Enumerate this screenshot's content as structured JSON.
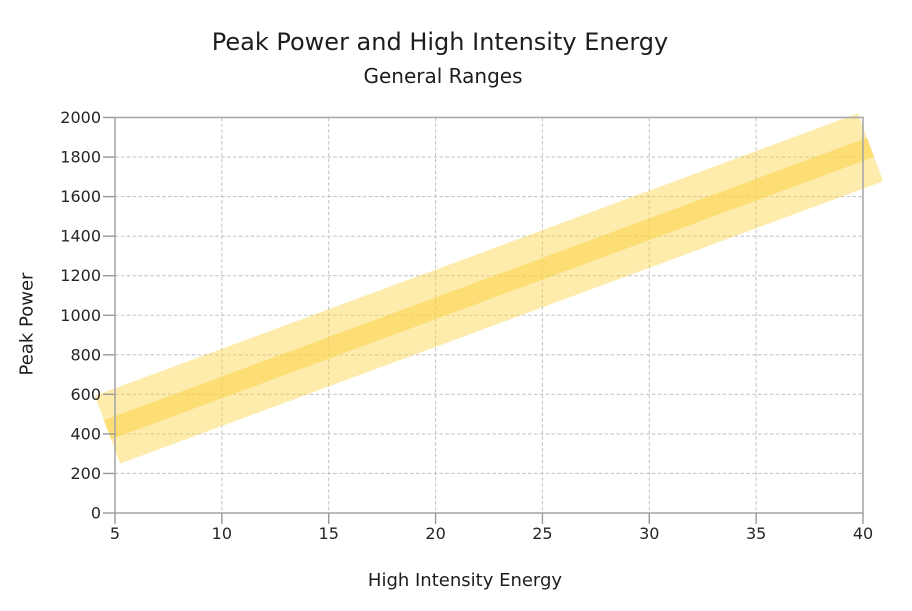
{
  "chart_data": {
    "type": "area",
    "title": "Peak Power and High Intensity Energy",
    "subtitle": "General Ranges",
    "xlabel": "High Intensity Energy",
    "ylabel": "Peak Power",
    "xlim": [
      5,
      40
    ],
    "ylim": [
      0,
      2000
    ],
    "xticks": [
      5,
      10,
      15,
      20,
      25,
      30,
      35,
      40
    ],
    "yticks": [
      0,
      200,
      400,
      600,
      800,
      1000,
      1200,
      1400,
      1600,
      1800,
      2000
    ],
    "grid": {
      "style": "dashed",
      "color": "#c6c6c6"
    },
    "legend": "none",
    "series": [
      {
        "name": "general-range-band",
        "type": "band",
        "x": [
          5,
          40
        ],
        "y_center": [
          435,
          1835
        ],
        "y_top": [
          630,
          2030
        ],
        "y_bottom": [
          240,
          1640
        ],
        "halfwidth_units": 195,
        "color": "#FBD448",
        "opacity": 0.45
      },
      {
        "name": "center-trend-line",
        "type": "line",
        "x": [
          5,
          40
        ],
        "y": [
          435,
          1835
        ],
        "halfwidth_units": 55,
        "color": "#FBD448",
        "opacity": 0.55
      }
    ],
    "frame_color": "#a8a8a8",
    "tick_color": "#999999",
    "text_color": "#1d1d1d",
    "tick_label_color": "#262626",
    "background": "#ffffff"
  }
}
